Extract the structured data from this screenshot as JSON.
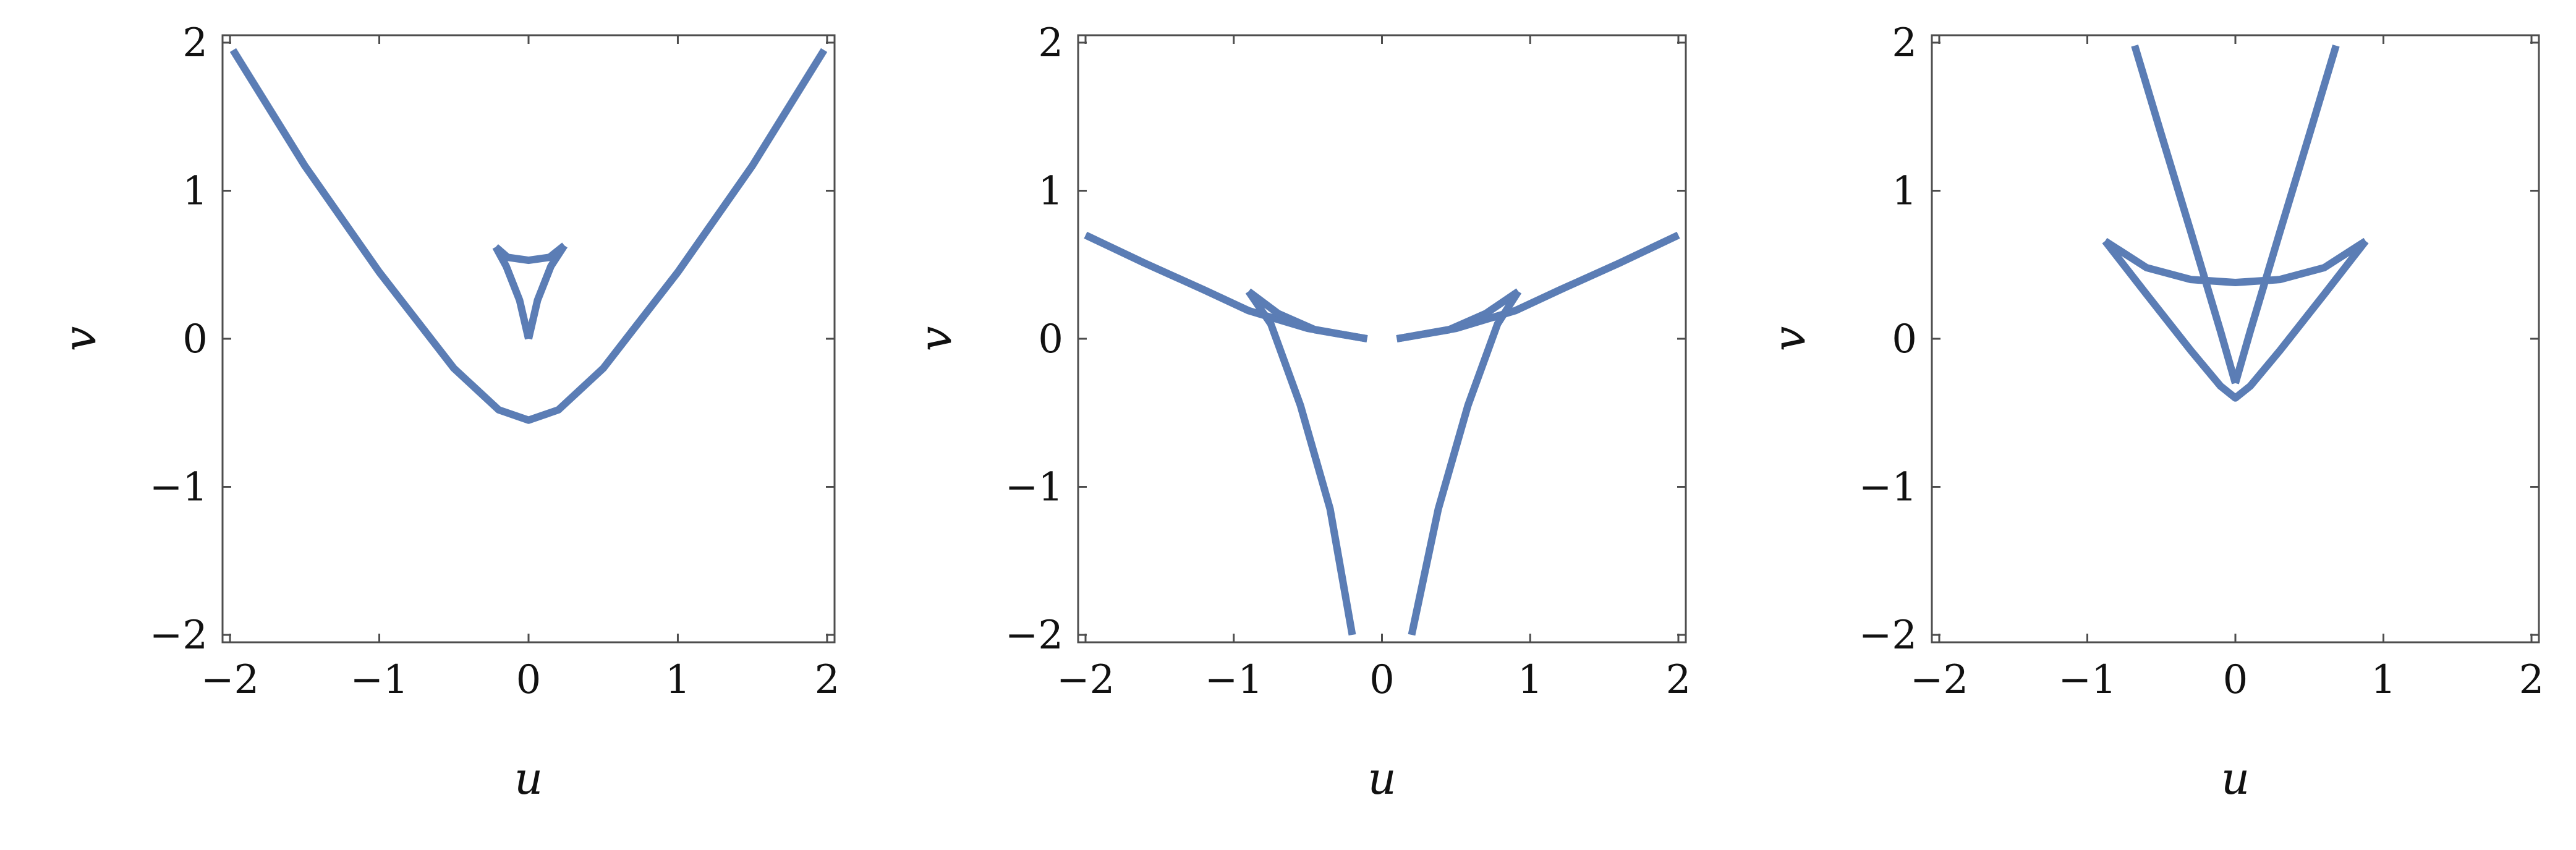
{
  "figure": {
    "panel_count": 3,
    "layout": "single row of three panels"
  },
  "style": {
    "curve_color": "#5b7db5",
    "frame_color": "#4d4d4d",
    "text_color": "#111111"
  },
  "chart_data": [
    {
      "type": "line",
      "xlabel": "u",
      "ylabel": "v",
      "xlim": [
        -2.05,
        2.05
      ],
      "ylim": [
        -2.05,
        2.05
      ],
      "xticks": [
        -2,
        -1,
        0,
        1,
        2
      ],
      "yticks": [
        -2,
        -1,
        0,
        1,
        2
      ],
      "xtick_labels": [
        "−2",
        "−1",
        "0",
        "1",
        "2"
      ],
      "ytick_labels": [
        "−2",
        "−1",
        "0",
        "1",
        "2"
      ],
      "grid": false,
      "legend": "none",
      "series": [
        {
          "points": [
            [
              -1.98,
              1.95
            ],
            [
              -1.5,
              1.17
            ],
            [
              -1.0,
              0.45
            ],
            [
              -0.5,
              -0.2
            ],
            [
              -0.2,
              -0.48
            ],
            [
              0.0,
              -0.55
            ],
            [
              0.2,
              -0.48
            ],
            [
              0.5,
              -0.2
            ],
            [
              1.0,
              0.45
            ],
            [
              1.5,
              1.17
            ],
            [
              1.98,
              1.95
            ]
          ]
        },
        {
          "points": [
            [
              0.0,
              0.0
            ],
            [
              -0.06,
              0.26
            ],
            [
              -0.15,
              0.49
            ],
            [
              -0.22,
              0.62
            ]
          ]
        },
        {
          "points": [
            [
              0.0,
              0.0
            ],
            [
              0.06,
              0.26
            ],
            [
              0.15,
              0.49
            ],
            [
              0.24,
              0.63
            ]
          ]
        },
        {
          "points": [
            [
              -0.22,
              0.62
            ],
            [
              -0.14,
              0.55
            ],
            [
              0.0,
              0.53
            ],
            [
              0.14,
              0.55
            ],
            [
              0.24,
              0.63
            ]
          ]
        }
      ]
    },
    {
      "type": "line",
      "xlabel": "u",
      "ylabel": "v",
      "xlim": [
        -2.05,
        2.05
      ],
      "ylim": [
        -2.05,
        2.05
      ],
      "xticks": [
        -2,
        -1,
        0,
        1,
        2
      ],
      "yticks": [
        -2,
        -1,
        0,
        1,
        2
      ],
      "xtick_labels": [
        "−2",
        "−1",
        "0",
        "1",
        "2"
      ],
      "ytick_labels": [
        "−2",
        "−1",
        "0",
        "1",
        "2"
      ],
      "grid": false,
      "legend": "none",
      "series": [
        {
          "points": [
            [
              -2.0,
              0.7
            ],
            [
              -1.6,
              0.51
            ],
            [
              -1.2,
              0.33
            ],
            [
              -0.9,
              0.19
            ],
            [
              -0.5,
              0.07
            ],
            [
              -0.1,
              0.0
            ]
          ]
        },
        {
          "points": [
            [
              0.1,
              0.0
            ],
            [
              0.5,
              0.07
            ],
            [
              0.9,
              0.19
            ],
            [
              1.2,
              0.33
            ],
            [
              1.6,
              0.51
            ],
            [
              2.0,
              0.7
            ]
          ]
        },
        {
          "points": [
            [
              -0.9,
              0.32
            ],
            [
              -0.7,
              0.17
            ],
            [
              -0.45,
              0.06
            ],
            [
              -0.1,
              0.0
            ]
          ]
        },
        {
          "points": [
            [
              0.1,
              0.0
            ],
            [
              0.45,
              0.06
            ],
            [
              0.7,
              0.17
            ],
            [
              0.92,
              0.32
            ]
          ]
        },
        {
          "points": [
            [
              -0.9,
              0.32
            ],
            [
              -0.75,
              0.1
            ],
            [
              -0.55,
              -0.45
            ],
            [
              -0.35,
              -1.15
            ],
            [
              -0.2,
              -2.0
            ]
          ]
        },
        {
          "points": [
            [
              0.92,
              0.32
            ],
            [
              0.78,
              0.1
            ],
            [
              0.58,
              -0.45
            ],
            [
              0.38,
              -1.15
            ],
            [
              0.2,
              -2.0
            ]
          ]
        }
      ]
    },
    {
      "type": "line",
      "xlabel": "u",
      "ylabel": "v",
      "xlim": [
        -2.05,
        2.05
      ],
      "ylim": [
        -2.05,
        2.05
      ],
      "xticks": [
        -2,
        -1,
        0,
        1,
        2
      ],
      "yticks": [
        -2,
        -1,
        0,
        1,
        2
      ],
      "xtick_labels": [
        "−2",
        "−1",
        "0",
        "1",
        "2"
      ],
      "ytick_labels": [
        "−2",
        "−1",
        "0",
        "1",
        "2"
      ],
      "grid": false,
      "legend": "none",
      "series": [
        {
          "points": [
            [
              -0.68,
              1.98
            ],
            [
              -0.5,
              1.38
            ],
            [
              -0.3,
              0.72
            ],
            [
              -0.1,
              0.05
            ],
            [
              0.0,
              -0.3
            ]
          ]
        },
        {
          "points": [
            [
              0.0,
              -0.3
            ],
            [
              0.1,
              0.05
            ],
            [
              0.3,
              0.72
            ],
            [
              0.5,
              1.38
            ],
            [
              0.68,
              1.98
            ]
          ]
        },
        {
          "points": [
            [
              -0.88,
              0.66
            ],
            [
              -0.6,
              0.48
            ],
            [
              -0.3,
              0.4
            ],
            [
              0.0,
              0.38
            ],
            [
              0.3,
              0.4
            ],
            [
              0.6,
              0.48
            ],
            [
              0.88,
              0.66
            ]
          ]
        },
        {
          "points": [
            [
              -0.88,
              0.66
            ],
            [
              -0.6,
              0.3
            ],
            [
              -0.3,
              -0.08
            ],
            [
              -0.1,
              -0.32
            ],
            [
              0.0,
              -0.4
            ],
            [
              0.1,
              -0.32
            ],
            [
              0.3,
              -0.08
            ],
            [
              0.6,
              0.3
            ],
            [
              0.88,
              0.66
            ]
          ]
        }
      ]
    }
  ]
}
